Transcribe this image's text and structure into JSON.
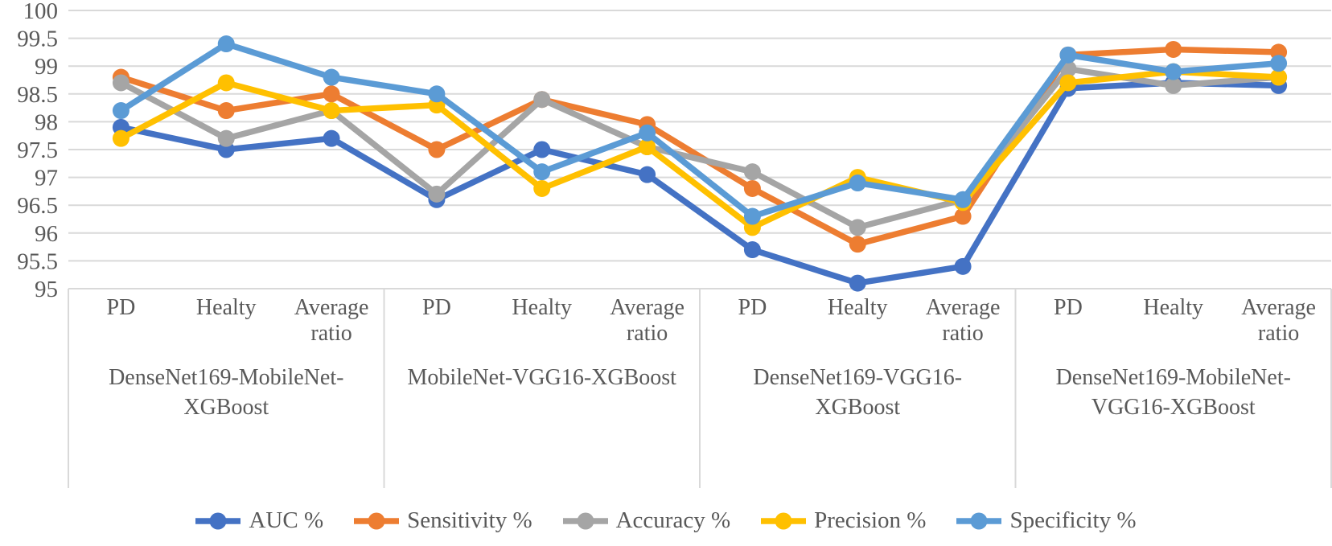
{
  "figure": {
    "background": "#ffffff",
    "text_color": "#595959",
    "gridline_color": "#d9d9d9"
  },
  "chart_data": {
    "type": "line",
    "title": "",
    "xlabel": "",
    "ylabel": "",
    "ylim": [
      95,
      100
    ],
    "y_tick_step": 0.5,
    "y_ticks": [
      "100",
      "99.5",
      "99",
      "98.5",
      "98",
      "97.5",
      "97",
      "96.5",
      "96",
      "95.5",
      "95"
    ],
    "grid": true,
    "legend_position": "bottom",
    "marker_style": "circle",
    "groups": [
      {
        "label_lines": [
          "DenseNet169-MobileNet-",
          "XGBoost"
        ],
        "categories": [
          "PD",
          "Healty",
          "Average ratio"
        ]
      },
      {
        "label_lines": [
          "MobileNet-VGG16-XGBoost"
        ],
        "categories": [
          "PD",
          "Healty",
          "Average ratio"
        ]
      },
      {
        "label_lines": [
          "DenseNet169-VGG16-",
          "XGBoost"
        ],
        "categories": [
          "PD",
          "Healty",
          "Average ratio"
        ]
      },
      {
        "label_lines": [
          "DenseNet169-MobileNet-",
          "VGG16-XGBoost"
        ],
        "categories": [
          "PD",
          "Healty",
          "Average ratio"
        ]
      }
    ],
    "categories": [
      "PD",
      "Healty",
      "Average ratio",
      "PD",
      "Healty",
      "Average ratio",
      "PD",
      "Healty",
      "Average ratio",
      "PD",
      "Healty",
      "Average ratio"
    ],
    "series": [
      {
        "name": "AUC %",
        "color": "#4472c4",
        "values": [
          97.9,
          97.5,
          97.7,
          96.6,
          97.5,
          97.05,
          95.7,
          95.1,
          95.4,
          98.6,
          98.7,
          98.65
        ]
      },
      {
        "name": "Sensitivity %",
        "color": "#ed7d31",
        "values": [
          98.8,
          98.2,
          98.5,
          97.5,
          98.4,
          97.95,
          96.8,
          95.8,
          96.3,
          99.2,
          99.3,
          99.25
        ]
      },
      {
        "name": "Accuracy %",
        "color": "#a5a5a5",
        "values": [
          98.7,
          97.7,
          98.2,
          96.7,
          98.4,
          97.55,
          97.1,
          96.1,
          96.6,
          98.95,
          98.65,
          98.8
        ]
      },
      {
        "name": "Precision %",
        "color": "#ffc000",
        "values": [
          97.7,
          98.7,
          98.2,
          98.3,
          96.8,
          97.55,
          96.1,
          97.0,
          96.55,
          98.7,
          98.9,
          98.8
        ]
      },
      {
        "name": "Specificity %",
        "color": "#5b9bd5",
        "values": [
          98.2,
          99.4,
          98.8,
          98.5,
          97.1,
          97.8,
          96.3,
          96.9,
          96.6,
          99.2,
          98.9,
          99.05
        ]
      }
    ]
  }
}
